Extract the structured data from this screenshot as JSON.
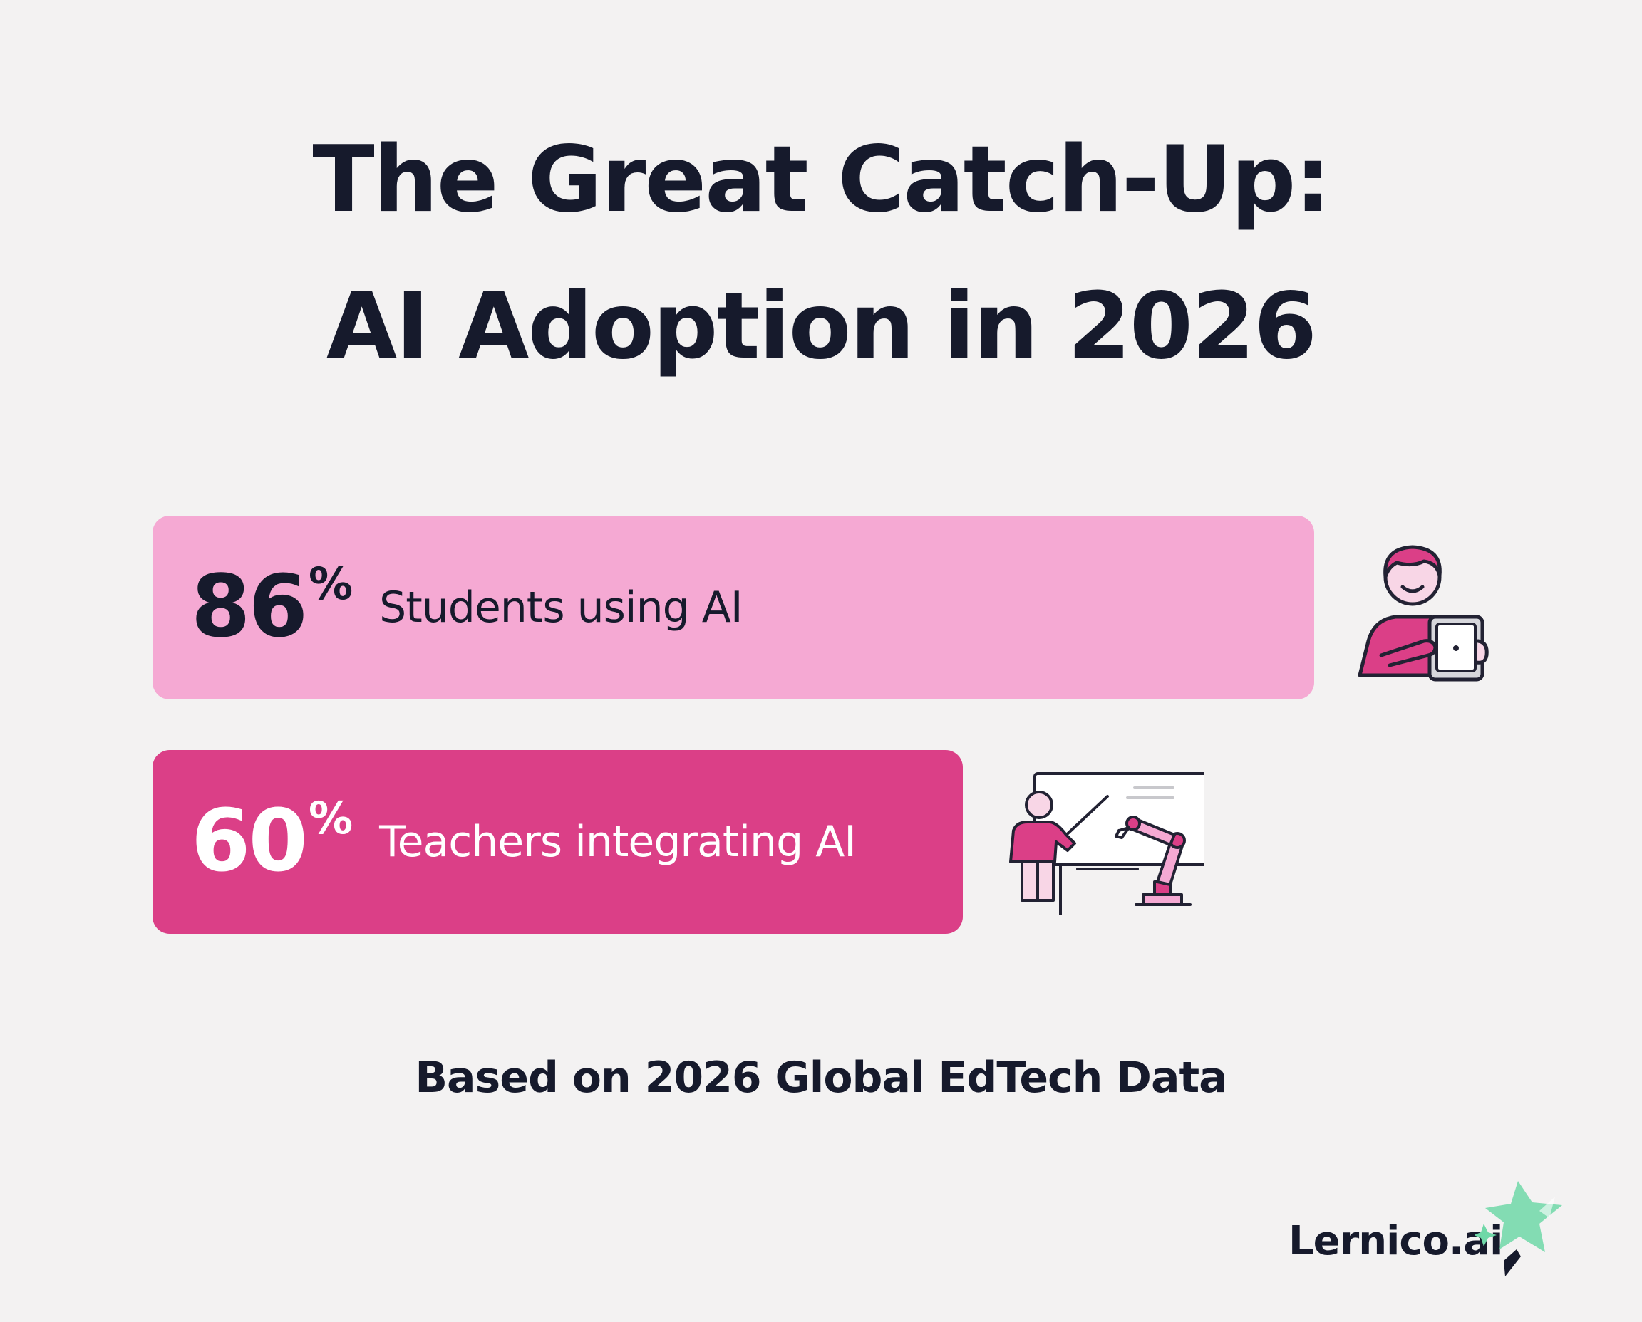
{
  "title": {
    "line1": "The Great Catch-Up:",
    "line2": "AI Adoption in 2026"
  },
  "chart_data": {
    "type": "bar",
    "orientation": "horizontal",
    "categories": [
      "Students using AI",
      "Teachers integrating AI"
    ],
    "values": [
      86,
      60
    ],
    "unit": "%",
    "max": 100,
    "colors": [
      "#f5a9d3",
      "#db3f87"
    ],
    "label_colors": [
      "#161a2c",
      "#ffffff"
    ],
    "icons": [
      "student-with-tablet-icon",
      "teacher-with-robot-arm-icon"
    ]
  },
  "bars": [
    {
      "value": "86",
      "unit": "%",
      "label": "Students using AI"
    },
    {
      "value": "60",
      "unit": "%",
      "label": "Teachers integrating AI"
    }
  ],
  "footnote": "Based on 2026 Global EdTech Data",
  "brand": {
    "name": "Lernico.ai",
    "mark_icon": "sparkle-star-icon"
  },
  "colors": {
    "background": "#f3f2f2",
    "text": "#161a2c",
    "light_pink": "#f5a9d3",
    "deep_pink": "#db3f87",
    "mint": "#6fd8a8"
  }
}
